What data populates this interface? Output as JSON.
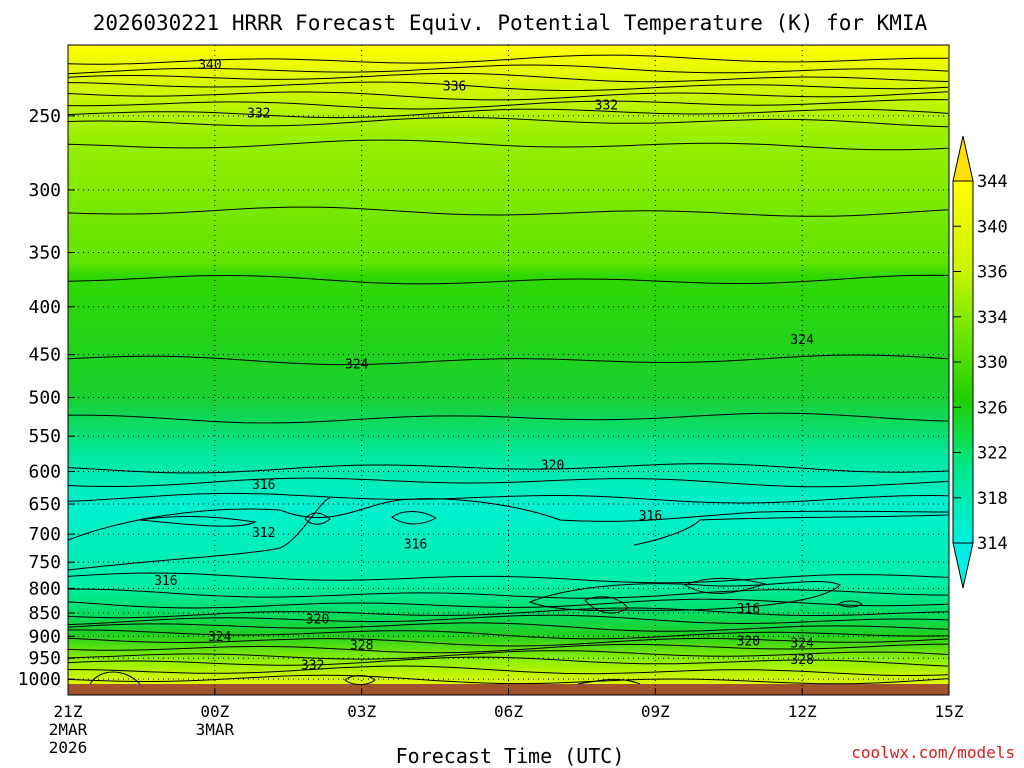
{
  "chart_data": {
    "type": "contour",
    "title": "2026030221 HRRR Forecast Equiv. Potential Temperature (K) for KMIA",
    "xlabel": "Forecast Time (UTC)",
    "ylabel": "",
    "credit": "coolwx.com/models",
    "x_ticks": [
      {
        "hour": 0,
        "lines": [
          "21Z",
          "2MAR",
          "2026"
        ]
      },
      {
        "hour": 3,
        "lines": [
          "00Z",
          "3MAR"
        ]
      },
      {
        "hour": 6,
        "lines": [
          "03Z"
        ]
      },
      {
        "hour": 9,
        "lines": [
          "06Z"
        ]
      },
      {
        "hour": 12,
        "lines": [
          "09Z"
        ]
      },
      {
        "hour": 15,
        "lines": [
          "12Z"
        ]
      },
      {
        "hour": 18,
        "lines": [
          "15Z"
        ]
      }
    ],
    "xlim": [
      0,
      18
    ],
    "y_axis": "pressure (hPa, log scale, inverted)",
    "y_ticks": [
      250,
      300,
      350,
      400,
      450,
      500,
      550,
      600,
      650,
      700,
      750,
      800,
      850,
      900,
      950,
      1000
    ],
    "ylim": [
      1040,
      210
    ],
    "colorbar": {
      "labels": [
        344,
        340,
        336,
        334,
        330,
        326,
        322,
        318,
        314
      ],
      "extend": "both"
    },
    "colors": {
      "ground": "#a0522d",
      "credit": "#d42020",
      "ramp": [
        "#00f5e0",
        "#00f0a0",
        "#00e070",
        "#10d010",
        "#40e000",
        "#80f000",
        "#c0f000",
        "#f0f000",
        "#ffff00"
      ]
    },
    "contour_labels": [
      {
        "text": "340",
        "hour": 2.9,
        "p": 220
      },
      {
        "text": "336",
        "hour": 7.9,
        "p": 232
      },
      {
        "text": "332",
        "hour": 11.0,
        "p": 243
      },
      {
        "text": "332",
        "hour": 3.9,
        "p": 248
      },
      {
        "text": "324",
        "hour": 15.0,
        "p": 433
      },
      {
        "text": "324",
        "hour": 5.9,
        "p": 460
      },
      {
        "text": "320",
        "hour": 9.9,
        "p": 590
      },
      {
        "text": "316",
        "hour": 4.0,
        "p": 619
      },
      {
        "text": "316",
        "hour": 11.9,
        "p": 668
      },
      {
        "text": "312",
        "hour": 4.0,
        "p": 696
      },
      {
        "text": "316",
        "hour": 7.1,
        "p": 716
      },
      {
        "text": "316",
        "hour": 2.0,
        "p": 784
      },
      {
        "text": "316",
        "hour": 13.9,
        "p": 840
      },
      {
        "text": "320",
        "hour": 5.1,
        "p": 862
      },
      {
        "text": "324",
        "hour": 3.1,
        "p": 899
      },
      {
        "text": "328",
        "hour": 6.0,
        "p": 919
      },
      {
        "text": "320",
        "hour": 13.9,
        "p": 909
      },
      {
        "text": "324",
        "hour": 15.0,
        "p": 914
      },
      {
        "text": "332",
        "hour": 5.0,
        "p": 965
      },
      {
        "text": "328",
        "hour": 15.0,
        "p": 952
      }
    ]
  }
}
